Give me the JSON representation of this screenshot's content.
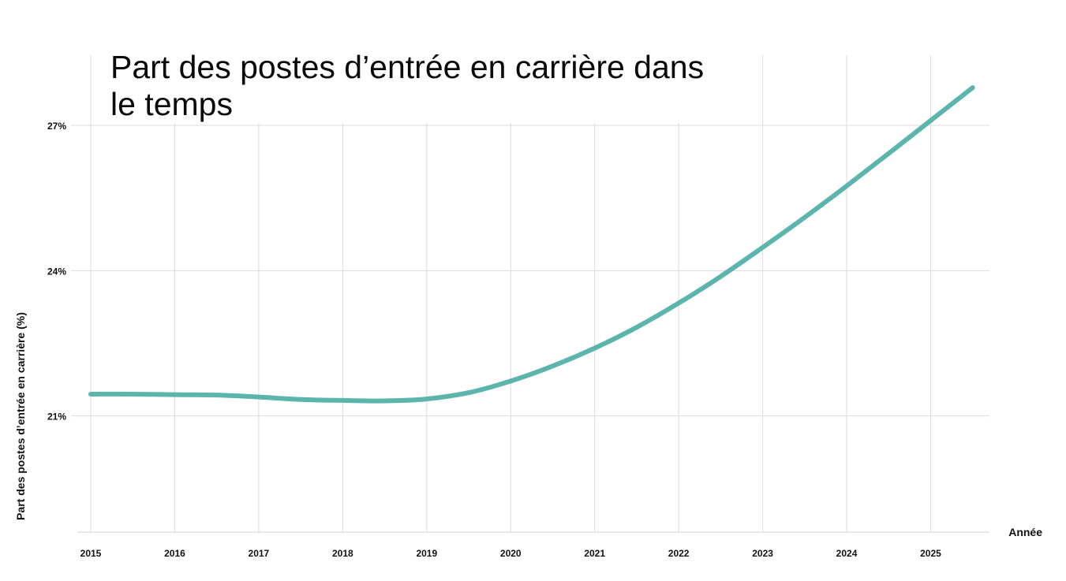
{
  "chart_data": {
    "type": "line",
    "title": "Part des postes d’entrée en carrière dans le temps",
    "xlabel": "Année",
    "ylabel": "Part des postes d’entrée en carrière (%)",
    "x_ticks": [
      "2015",
      "2016",
      "2017",
      "2018",
      "2019",
      "2020",
      "2021",
      "2022",
      "2023",
      "2024",
      "2025"
    ],
    "y_ticks": [
      {
        "value": 21,
        "label": "21%"
      },
      {
        "value": 24,
        "label": "24%"
      },
      {
        "value": 27,
        "label": "27%"
      }
    ],
    "xlim": [
      2015,
      2025.7
    ],
    "ylim": [
      18.6,
      28.45
    ],
    "grid": true,
    "line_color": "#5bb5ad",
    "series": [
      {
        "x": [
          2015,
          2015.5,
          2016,
          2016.5,
          2017,
          2017.5,
          2018,
          2018.5,
          2019,
          2019.5,
          2020,
          2020.5,
          2021,
          2021.5,
          2022,
          2022.5,
          2023,
          2023.5,
          2024,
          2024.5,
          2025,
          2025.5
        ],
        "y": [
          21.45,
          21.45,
          21.44,
          21.43,
          21.39,
          21.34,
          21.32,
          21.31,
          21.35,
          21.48,
          21.72,
          22.03,
          22.4,
          22.83,
          23.33,
          23.88,
          24.48,
          25.1,
          25.75,
          26.42,
          27.1,
          27.78
        ]
      }
    ]
  }
}
